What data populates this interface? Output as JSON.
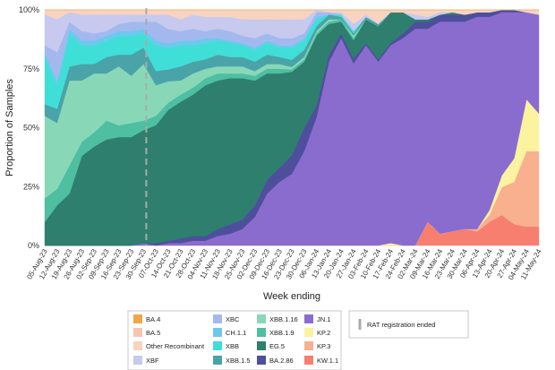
{
  "chart_data": {
    "type": "area",
    "stacked": true,
    "xlabel": "Week ending",
    "ylabel": "Proportion of Samples",
    "ylim": [
      0,
      100
    ],
    "yticks": [
      "0%",
      "25%",
      "50%",
      "75%",
      "100%"
    ],
    "x": [
      "05-Aug-23",
      "12-Aug-23",
      "19-Aug-23",
      "26-Aug-23",
      "02-Sep-23",
      "09-Sep-23",
      "16-Sep-23",
      "23-Sep-23",
      "30-Sep-23",
      "07-Oct-23",
      "14-Oct-23",
      "21-Oct-23",
      "28-Oct-23",
      "04-Nov-23",
      "11-Nov-23",
      "18-Nov-23",
      "25-Nov-23",
      "02-Dec-23",
      "09-Dec-23",
      "16-Dec-23",
      "23-Dec-23",
      "30-Dec-23",
      "06-Jan-24",
      "13-Jan-24",
      "20-Jan-24",
      "27-Jan-24",
      "03-Feb-24",
      "10-Feb-24",
      "17-Feb-24",
      "24-Feb-24",
      "02-Mar-24",
      "09-Mar-24",
      "16-Mar-24",
      "23-Mar-24",
      "30-Mar-24",
      "06-Apr-24",
      "13-Apr-24",
      "20-Apr-24",
      "27-Apr-24",
      "04-May-24",
      "11-May-24"
    ],
    "series": [
      {
        "name": "KW.1.1",
        "color": "#f77f6f",
        "values": [
          0,
          0,
          0,
          0,
          0,
          0,
          0,
          0,
          0,
          0,
          0,
          0,
          0,
          0,
          0,
          0,
          0,
          0,
          0,
          0,
          0,
          0,
          0,
          0,
          0,
          0,
          0,
          0,
          0,
          0,
          0,
          10,
          5,
          6,
          7,
          6,
          10,
          13,
          9,
          8,
          8
        ]
      },
      {
        "name": "KP.3",
        "color": "#f8b08f",
        "values": [
          0,
          0,
          0,
          0,
          0,
          0,
          0,
          0,
          0,
          0,
          0,
          0,
          0,
          0,
          0,
          0,
          0,
          0,
          0,
          0,
          0,
          0,
          0,
          0,
          0,
          0,
          0,
          0,
          0,
          0,
          0,
          0,
          0,
          0,
          0,
          1,
          3,
          12,
          18,
          32,
          32
        ]
      },
      {
        "name": "KP.2",
        "color": "#fbf3a0",
        "values": [
          0,
          0,
          0,
          0,
          0,
          0,
          0,
          0,
          0,
          0,
          0,
          0,
          0,
          0,
          0,
          0,
          0,
          0,
          0,
          0,
          0,
          0,
          0,
          0,
          0,
          0,
          0,
          0,
          1,
          0,
          0,
          0,
          0,
          0,
          0,
          0,
          2,
          5,
          10,
          22,
          16
        ]
      },
      {
        "name": "JN.1",
        "color": "#8a6ccf",
        "values": [
          0,
          0,
          0,
          0,
          0,
          0,
          0,
          0,
          1,
          0,
          1,
          1,
          2,
          2,
          4,
          5,
          7,
          12,
          22,
          27,
          30,
          40,
          55,
          78,
          88,
          78,
          85,
          78,
          84,
          88,
          92,
          82,
          90,
          89,
          88,
          91,
          82,
          70,
          62,
          37,
          42
        ]
      },
      {
        "name": "BA.2.86",
        "color": "#4d4f9c",
        "values": [
          0,
          0,
          0,
          0,
          0,
          0,
          0,
          0,
          0,
          1,
          1,
          2,
          2,
          2,
          3,
          4,
          4,
          5,
          6,
          6,
          8,
          10,
          5,
          3,
          2,
          2,
          1,
          1,
          1,
          2,
          3,
          3,
          3,
          3,
          3,
          2,
          2,
          1,
          1,
          0,
          0
        ]
      },
      {
        "name": "EG.5",
        "color": "#2e7f6e",
        "values": [
          10,
          17,
          22,
          38,
          42,
          45,
          46,
          46,
          48,
          50,
          55,
          58,
          60,
          64,
          63,
          62,
          60,
          53,
          45,
          40,
          35,
          28,
          30,
          13,
          5,
          8,
          10,
          14,
          13,
          9,
          1,
          1,
          0,
          1,
          0,
          0,
          0,
          0,
          0,
          0,
          0
        ]
      },
      {
        "name": "XBB.1.9",
        "color": "#4ebfa1",
        "values": [
          10,
          7,
          12,
          6,
          6,
          8,
          5,
          6,
          4,
          4,
          3,
          3,
          3,
          3,
          3,
          2,
          2,
          2,
          2,
          2,
          1,
          1,
          1,
          1,
          1,
          1,
          0,
          0,
          0,
          0,
          0,
          0,
          0,
          0,
          0,
          0,
          0,
          0,
          0,
          0,
          0
        ]
      },
      {
        "name": "XBB.1.16",
        "color": "#88d8b8",
        "values": [
          35,
          28,
          36,
          26,
          25,
          20,
          25,
          20,
          24,
          13,
          9,
          6,
          6,
          4,
          3,
          3,
          3,
          2,
          2,
          2,
          1,
          1,
          1,
          1,
          0,
          1,
          0,
          0,
          0,
          0,
          0,
          0,
          0,
          0,
          0,
          0,
          0,
          0,
          0,
          0,
          0
        ]
      },
      {
        "name": "XBB.1.5",
        "color": "#4aa3a8",
        "values": [
          5,
          6,
          6,
          7,
          4,
          7,
          5,
          9,
          7,
          6,
          5,
          6,
          5,
          4,
          5,
          4,
          4,
          4,
          4,
          3,
          3,
          3,
          2,
          2,
          1,
          1,
          1,
          1,
          0,
          0,
          0,
          0,
          0,
          0,
          0,
          0,
          0,
          0,
          0,
          0,
          0
        ]
      },
      {
        "name": "XBB",
        "color": "#3fdfd8",
        "values": [
          20,
          10,
          14,
          8,
          8,
          7,
          8,
          8,
          6,
          11,
          9,
          9,
          7,
          7,
          6,
          6,
          5,
          5,
          5,
          4,
          5,
          4,
          3,
          0,
          1,
          1,
          0,
          0,
          0,
          0,
          0,
          0,
          0,
          0,
          0,
          0,
          0,
          0,
          0,
          0,
          0
        ]
      },
      {
        "name": "CH.1.1",
        "color": "#6ec8ee",
        "values": [
          2,
          2,
          2,
          2,
          2,
          2,
          2,
          2,
          2,
          2,
          2,
          2,
          2,
          2,
          1,
          1,
          1,
          1,
          1,
          1,
          1,
          1,
          1,
          0,
          0,
          0,
          0,
          0,
          0,
          0,
          0,
          0,
          0,
          0,
          0,
          0,
          0,
          0,
          0,
          0,
          0
        ]
      },
      {
        "name": "XBC",
        "color": "#a3b9ee",
        "values": [
          3,
          12,
          3,
          4,
          3,
          2,
          3,
          4,
          3,
          8,
          6,
          4,
          5,
          3,
          4,
          4,
          3,
          4,
          3,
          3,
          3,
          2,
          2,
          1,
          0,
          0,
          0,
          0,
          0,
          0,
          0,
          0,
          0,
          0,
          0,
          0,
          0,
          0,
          0,
          0,
          0
        ]
      },
      {
        "name": "XBF",
        "color": "#c7c9ee",
        "values": [
          13,
          14,
          4,
          7,
          8,
          7,
          4,
          3,
          3,
          3,
          6,
          5,
          6,
          6,
          5,
          6,
          7,
          8,
          6,
          8,
          8,
          6,
          1,
          0,
          1,
          3,
          1,
          0,
          0,
          0,
          2,
          1,
          1,
          0,
          0,
          0,
          0,
          0,
          0,
          0,
          0
        ]
      },
      {
        "name": "Other Recombinant",
        "color": "#f8d3c0",
        "values": [
          2,
          4,
          1,
          2,
          2,
          2,
          2,
          2,
          2,
          2,
          2,
          4,
          2,
          3,
          3,
          3,
          4,
          4,
          4,
          4,
          4,
          4,
          0,
          1,
          1,
          6,
          2,
          6,
          1,
          1,
          2,
          3,
          1,
          1,
          2,
          1,
          1,
          0,
          0,
          1,
          2
        ]
      },
      {
        "name": "BA.5",
        "color": "#f7c6b0",
        "values": [
          0,
          0,
          0,
          0,
          0,
          0,
          0,
          0,
          0,
          0,
          0,
          0,
          0,
          0,
          0,
          0,
          0,
          0,
          0,
          0,
          0,
          0,
          0,
          0,
          0,
          0,
          0,
          0,
          0,
          0,
          0,
          0,
          0,
          0,
          0,
          0,
          0,
          0,
          0,
          0,
          0
        ]
      },
      {
        "name": "BA.4",
        "color": "#f0a64a",
        "values": [
          0,
          0,
          0,
          0,
          0,
          0,
          0,
          0,
          0,
          0,
          0,
          0,
          0,
          0,
          0,
          0,
          0,
          0,
          0,
          0,
          0,
          0,
          0,
          0,
          0,
          0,
          0,
          0,
          0,
          0,
          0,
          0,
          0,
          0,
          0,
          0,
          0,
          0,
          0,
          0,
          0
        ]
      }
    ],
    "legend_order": [
      "BA.4",
      "BA.5",
      "Other Recombinant",
      "XBF",
      "XBC",
      "CH.1.1",
      "XBB",
      "XBB.1.5",
      "XBB.1.16",
      "XBB.1.9",
      "EG.5",
      "BA.2.86",
      "JN.1",
      "KP.2",
      "KP.3",
      "KW.1.1"
    ],
    "annotation": {
      "label": "RAT registration ended",
      "x": "30-Sep-23",
      "style": "dashed",
      "color": "#aaaaaa"
    },
    "legend_placement": "bottom"
  }
}
